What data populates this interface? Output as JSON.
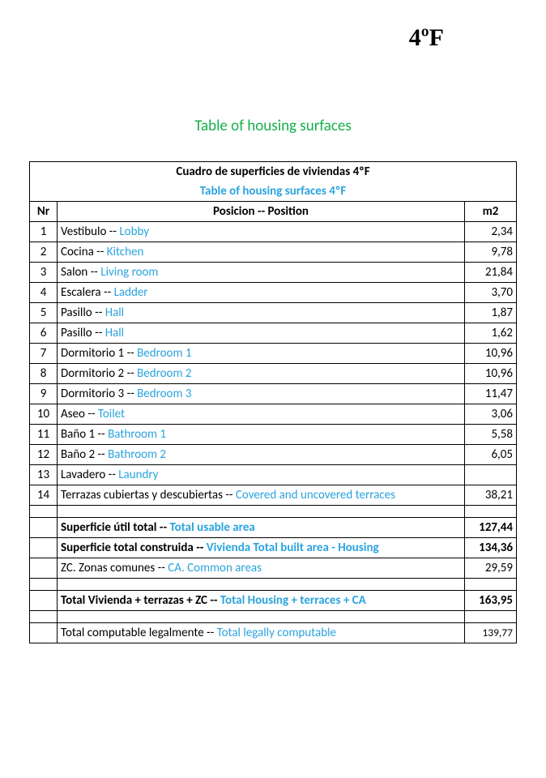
{
  "colors": {
    "translation": "#2aa3de",
    "subtitle": "#16b04b",
    "text": "#000000",
    "border": "#000000",
    "background": "#ffffff"
  },
  "page": {
    "apt_label": "4ºF",
    "subtitle_en": "Table of housing surfaces"
  },
  "table": {
    "title_es": "Cuadro de superficies de viviendas 4ºF",
    "title_en": "Table of housing surfaces 4ºF",
    "columns": {
      "nr": "Nr",
      "pos": "Posicion -- Position",
      "m2": "m2"
    },
    "cols_width": {
      "nr": 34,
      "m2": 64
    },
    "rows": [
      {
        "nr": "1",
        "es": "Vestibulo",
        "sep": " -- ",
        "en": "Lobby",
        "m2": "2,34"
      },
      {
        "nr": "2",
        "es": "Cocina",
        "sep": " --  ",
        "en": "Kitchen",
        "m2": "9,78"
      },
      {
        "nr": "3",
        "es": "Salon",
        "sep": " -- ",
        "en": "Living room",
        "m2": "21,84"
      },
      {
        "nr": "4",
        "es": "Escalera",
        "sep": " -- ",
        "en": "Ladder",
        "m2": "3,70"
      },
      {
        "nr": "5",
        "es": "Pasillo",
        "sep": " -- ",
        "en": "Hall",
        "m2": "1,87"
      },
      {
        "nr": "6",
        "es": "Pasillo",
        "sep": " -- ",
        "en": "Hall",
        "m2": "1,62"
      },
      {
        "nr": "7",
        "es": "Dormitorio 1",
        "sep": " -- ",
        "en": "Bedroom 1",
        "m2": "10,96"
      },
      {
        "nr": "8",
        "es": "Dormitorio 2",
        "sep": " -- ",
        "en": "Bedroom 2",
        "m2": "10,96"
      },
      {
        "nr": "9",
        "es": "Dormitorio 3",
        "sep": " -- ",
        "en": "Bedroom 3",
        "m2": "11,47"
      },
      {
        "nr": "10",
        "es": "Aseo",
        "sep": " -- ",
        "en": "Toilet",
        "m2": "3,06"
      },
      {
        "nr": "11",
        "es": "Baño 1",
        "sep": " -- ",
        "en": "Bathroom 1",
        "m2": "5,58"
      },
      {
        "nr": "12",
        "es": "Baño 2",
        "sep": " -- ",
        "en": "Bathroom 2",
        "m2": "6,05"
      },
      {
        "nr": "13",
        "es": "Lavadero",
        "sep": " -- ",
        "en": "Laundry",
        "m2": ""
      },
      {
        "nr": "14",
        "es": "Terrazas cubiertas y descubiertas",
        "sep": " -- ",
        "en": "Covered and uncovered terraces",
        "m2": "38,21"
      }
    ],
    "summary": [
      {
        "es": "Superficie útil total",
        "sep": " -- ",
        "en": "Total usable area",
        "m2": "127,44",
        "bold": true
      },
      {
        "es": "Superficie total construida",
        "sep": " -- ",
        "en": "Vivienda Total built area - Housing",
        "m2": "134,36",
        "bold": true
      },
      {
        "es": "ZC. Zonas comunes ",
        "sep": " -- ",
        "en": " CA. Common areas",
        "m2": "29,59",
        "bold": false
      }
    ],
    "total": {
      "es": "Total Vivienda + terrazas + ZC ",
      "sep": " -- ",
      "en": " Total Housing + terraces + CA",
      "m2": "163,95"
    },
    "legal": {
      "es": "Total computable legalmente",
      "sep": " -- ",
      "en": "Total legally computable",
      "m2": "139,77"
    }
  }
}
